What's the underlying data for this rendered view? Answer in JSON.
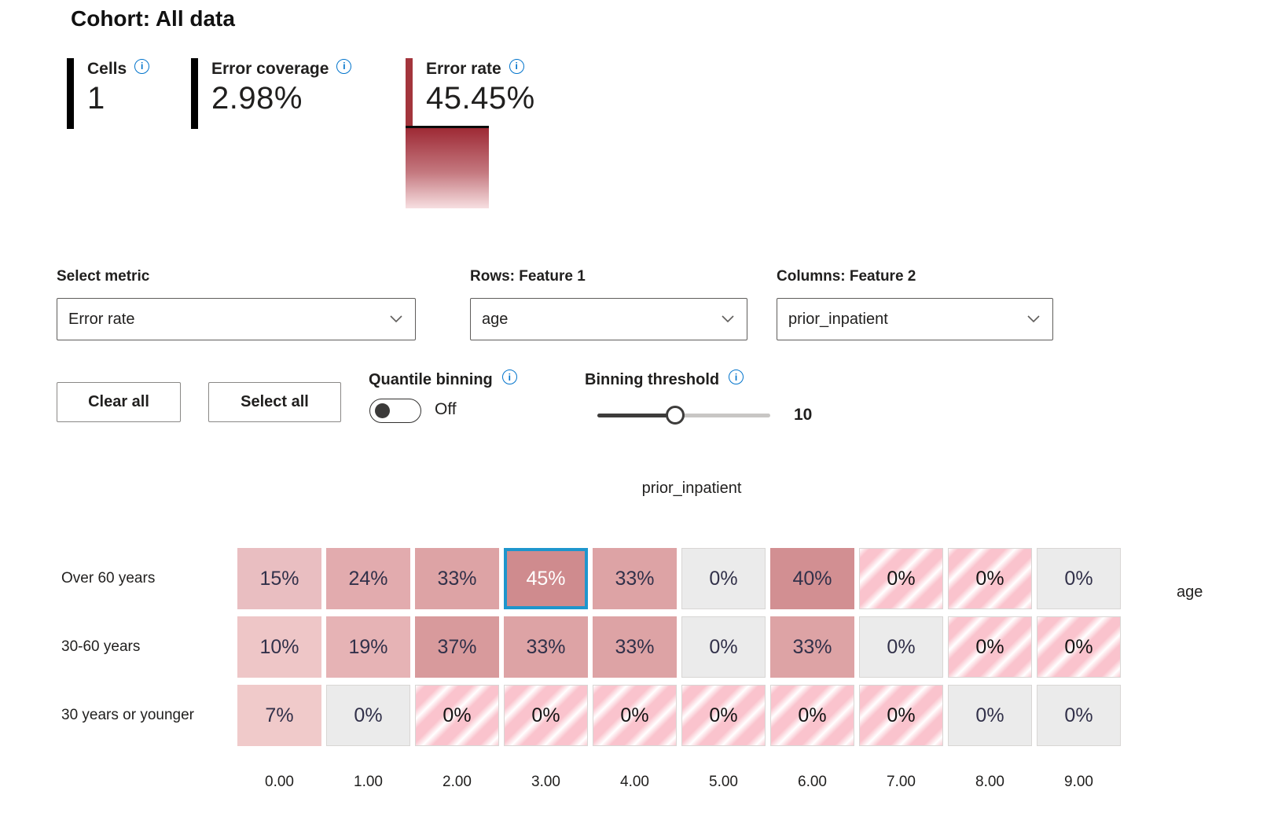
{
  "cohort": {
    "title": "Cohort: All data"
  },
  "icons": {
    "info_glyph": "i"
  },
  "metrics": [
    {
      "label": "Cells",
      "value": "1",
      "bar_color": "#000000"
    },
    {
      "label": "Error coverage",
      "value": "2.98%",
      "bar_color": "#000000"
    },
    {
      "label": "Error rate",
      "value": "45.45%",
      "bar_color": "#a3353c"
    }
  ],
  "controls": {
    "select_metric": {
      "label": "Select metric",
      "value": "Error rate"
    },
    "rows_feature": {
      "label": "Rows: Feature 1",
      "value": "age"
    },
    "cols_feature": {
      "label": "Columns: Feature 2",
      "value": "prior_inpatient"
    },
    "clear_all_label": "Clear all",
    "select_all_label": "Select all",
    "quantile_binning": {
      "label": "Quantile binning",
      "state": "Off"
    },
    "binning_threshold": {
      "label": "Binning threshold",
      "value": "10",
      "position_pct": 45
    }
  },
  "chart_data": {
    "type": "heatmap",
    "title": "prior_inpatient",
    "xlabel": "prior_inpatient",
    "ylabel": "age",
    "metric": "Error rate",
    "legend": {
      "high_color": "#9e2a35",
      "low_color": "#f7dfe1",
      "selected_border": "#1e96cd"
    },
    "columns": [
      "0.00",
      "1.00",
      "2.00",
      "3.00",
      "4.00",
      "5.00",
      "6.00",
      "7.00",
      "8.00",
      "9.00"
    ],
    "rows": [
      "Over 60 years",
      "30-60 years",
      "30 years or younger"
    ],
    "selected": {
      "row": 0,
      "col": 3
    },
    "cells": [
      [
        {
          "label": "15%",
          "value": 15,
          "kind": "solid",
          "color": "#e9bec1"
        },
        {
          "label": "24%",
          "value": 24,
          "kind": "solid",
          "color": "#e2abae"
        },
        {
          "label": "33%",
          "value": 33,
          "kind": "solid",
          "color": "#dda3a5"
        },
        {
          "label": "45%",
          "value": 45,
          "kind": "solid",
          "color": "#cf8b8e"
        },
        {
          "label": "33%",
          "value": 33,
          "kind": "solid",
          "color": "#dda3a5"
        },
        {
          "label": "0%",
          "value": 0,
          "kind": "gray"
        },
        {
          "label": "40%",
          "value": 40,
          "kind": "solid",
          "color": "#d28f92"
        },
        {
          "label": "0%",
          "value": 0,
          "kind": "striped"
        },
        {
          "label": "0%",
          "value": 0,
          "kind": "striped"
        },
        {
          "label": "0%",
          "value": 0,
          "kind": "gray"
        }
      ],
      [
        {
          "label": "10%",
          "value": 10,
          "kind": "solid",
          "color": "#eec6c7"
        },
        {
          "label": "19%",
          "value": 19,
          "kind": "solid",
          "color": "#e6b3b5"
        },
        {
          "label": "37%",
          "value": 37,
          "kind": "solid",
          "color": "#d89a9c"
        },
        {
          "label": "33%",
          "value": 33,
          "kind": "solid",
          "color": "#dda3a5"
        },
        {
          "label": "33%",
          "value": 33,
          "kind": "solid",
          "color": "#dda3a5"
        },
        {
          "label": "0%",
          "value": 0,
          "kind": "gray"
        },
        {
          "label": "33%",
          "value": 33,
          "kind": "solid",
          "color": "#dda3a5"
        },
        {
          "label": "0%",
          "value": 0,
          "kind": "gray"
        },
        {
          "label": "0%",
          "value": 0,
          "kind": "striped"
        },
        {
          "label": "0%",
          "value": 0,
          "kind": "striped"
        }
      ],
      [
        {
          "label": "7%",
          "value": 7,
          "kind": "solid",
          "color": "#f0caca"
        },
        {
          "label": "0%",
          "value": 0,
          "kind": "gray"
        },
        {
          "label": "0%",
          "value": 0,
          "kind": "striped"
        },
        {
          "label": "0%",
          "value": 0,
          "kind": "striped"
        },
        {
          "label": "0%",
          "value": 0,
          "kind": "striped"
        },
        {
          "label": "0%",
          "value": 0,
          "kind": "striped"
        },
        {
          "label": "0%",
          "value": 0,
          "kind": "striped"
        },
        {
          "label": "0%",
          "value": 0,
          "kind": "striped"
        },
        {
          "label": "0%",
          "value": 0,
          "kind": "gray"
        },
        {
          "label": "0%",
          "value": 0,
          "kind": "gray"
        }
      ]
    ]
  }
}
